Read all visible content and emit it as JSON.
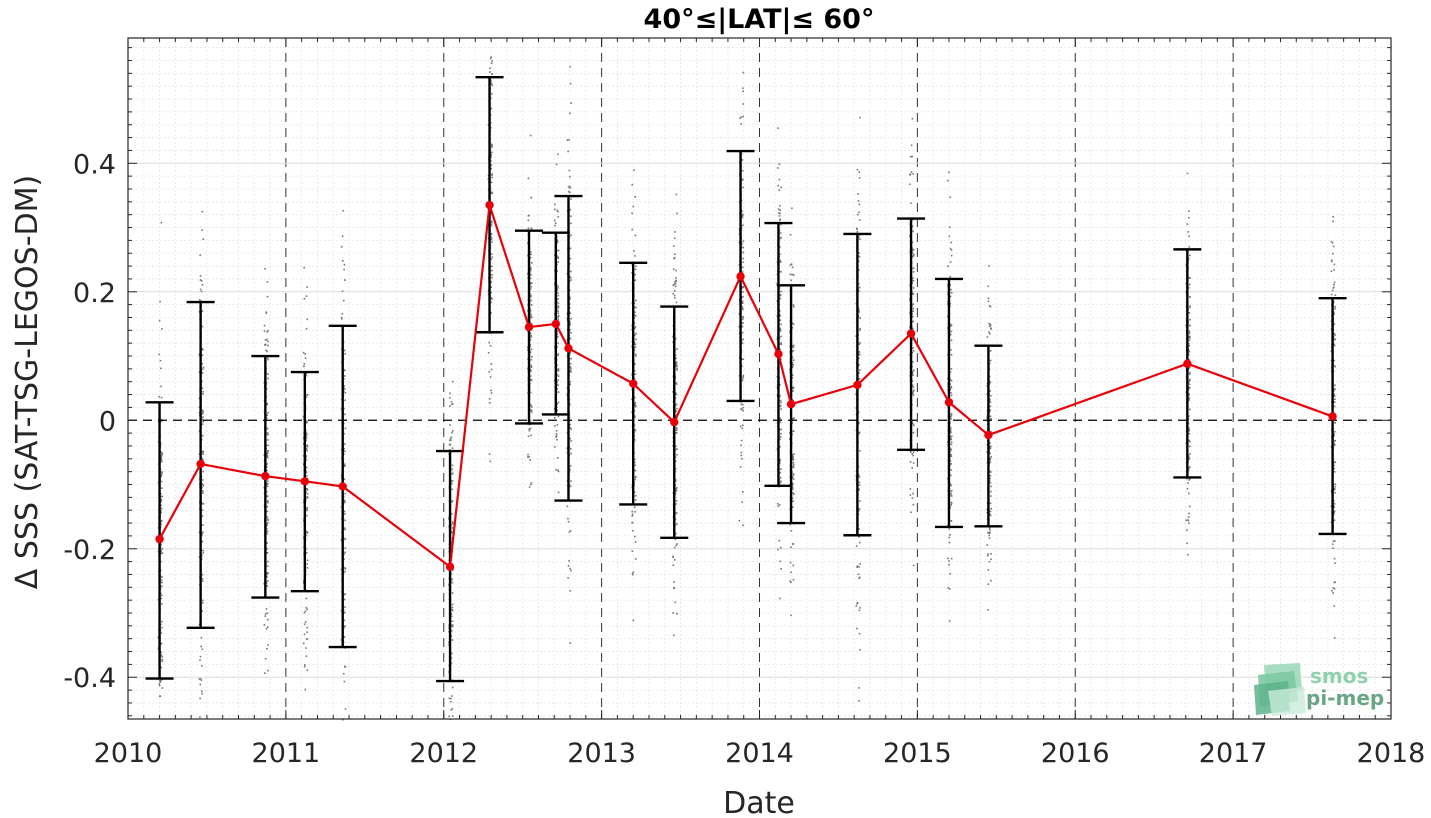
{
  "chart_data": {
    "type": "scatter",
    "title": "40°≤|LAT|≤ 60°",
    "xlabel": "Date",
    "ylabel": "Δ SSS (SAT-TSG-LEGOS-DM)",
    "xlim": [
      2010,
      2018
    ],
    "ylim": [
      -0.465,
      0.595
    ],
    "x_ticks": [
      2010,
      2011,
      2012,
      2013,
      2014,
      2015,
      2016,
      2017,
      2018
    ],
    "x_tick_labels": [
      "2010",
      "2011",
      "2012",
      "2013",
      "2014",
      "2015",
      "2016",
      "2017",
      "2018"
    ],
    "y_ticks": [
      -0.4,
      -0.2,
      0,
      0.2,
      0.4
    ],
    "y_tick_labels": [
      "-0.4",
      "-0.2",
      "0",
      "0.2",
      "0.4"
    ],
    "grid": true,
    "zero_line": true,
    "series": [
      {
        "type": "line",
        "color": "#e8000b",
        "x": [
          2010.2,
          2010.46,
          2010.87,
          2011.12,
          2011.36,
          2012.04,
          2012.29,
          2012.54,
          2012.71,
          2012.79,
          2013.2,
          2013.46,
          2013.88,
          2014.12,
          2014.2,
          2014.62,
          2014.96,
          2015.2,
          2015.45,
          2016.71,
          2017.63
        ],
        "y": [
          -0.185,
          -0.068,
          -0.087,
          -0.095,
          -0.103,
          -0.228,
          0.335,
          0.145,
          0.15,
          0.112,
          0.057,
          -0.003,
          0.224,
          0.103,
          0.025,
          0.055,
          0.135,
          0.028,
          -0.023,
          0.088,
          0.006
        ],
        "error_low": [
          -0.402,
          -0.323,
          -0.276,
          -0.266,
          -0.353,
          -0.406,
          0.137,
          -0.005,
          0.009,
          -0.125,
          -0.131,
          -0.183,
          0.03,
          -0.102,
          -0.16,
          -0.179,
          -0.046,
          -0.166,
          -0.165,
          -0.089,
          -0.177
        ],
        "error_high": [
          0.028,
          0.184,
          0.1,
          0.075,
          0.147,
          -0.048,
          0.534,
          0.295,
          0.292,
          0.349,
          0.245,
          0.177,
          0.419,
          0.307,
          0.21,
          0.29,
          0.314,
          0.22,
          0.116,
          0.266,
          0.19
        ]
      }
    ],
    "scatter_color": "#777777",
    "errorbar_color": "#000000"
  },
  "logo": {
    "line1": "smos",
    "line2": "pi-mep",
    "icon": "smos-pimep-logo"
  }
}
